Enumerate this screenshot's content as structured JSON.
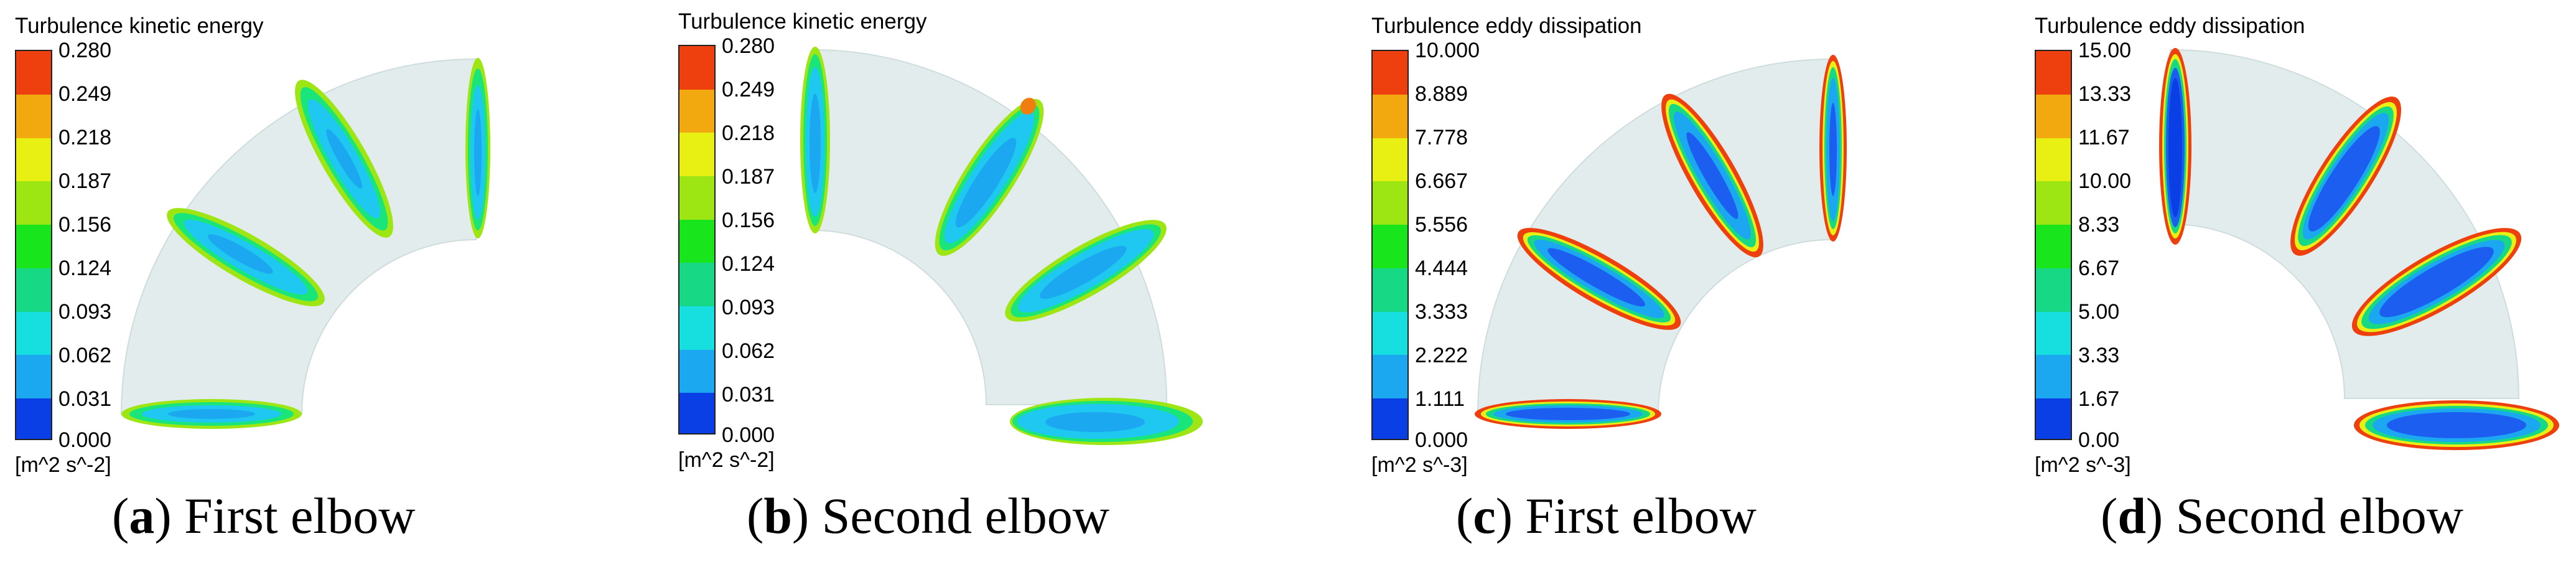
{
  "colors": {
    "pipe": "#e3ecec",
    "pipe_edge": "#c9d6d6",
    "legend": [
      "#0a3fe6",
      "#1c8cf0",
      "#17c8f5",
      "#17dfb0",
      "#17cf53",
      "#19e51c",
      "#9ee514",
      "#e7f012",
      "#f2bd10",
      "#f07e0e",
      "#ee3f0f"
    ]
  },
  "panels": [
    {
      "legend_title": "Turbulence kinetic energy",
      "legend_values": [
        "0.280",
        "0.249",
        "0.218",
        "0.187",
        "0.156",
        "0.124",
        "0.093",
        "0.062",
        "0.031",
        "0.000"
      ],
      "unit": "[m^2 s^-2]",
      "caption_letter": "a",
      "caption_text": "First elbow"
    },
    {
      "legend_title": "Turbulence kinetic energy",
      "legend_values": [
        "0.280",
        "0.249",
        "0.218",
        "0.187",
        "0.156",
        "0.124",
        "0.093",
        "0.062",
        "0.031",
        "0.000"
      ],
      "unit": "[m^2 s^-2]",
      "caption_letter": "b",
      "caption_text": "Second elbow"
    },
    {
      "legend_title": "Turbulence eddy dissipation",
      "legend_values": [
        "10.000",
        "8.889",
        "7.778",
        "6.667",
        "5.556",
        "4.444",
        "3.333",
        "2.222",
        "1.111",
        "0.000"
      ],
      "unit": "[m^2 s^-3]",
      "caption_letter": "c",
      "caption_text": "First elbow"
    },
    {
      "legend_title": "Turbulence eddy dissipation",
      "legend_values": [
        "15.00",
        "13.33",
        "11.67",
        "10.00",
        "8.33",
        "6.67",
        "5.00",
        "3.33",
        "1.67",
        "0.00"
      ],
      "unit": "[m^2 s^-3]",
      "caption_letter": "d",
      "caption_text": "Second elbow"
    }
  ],
  "punct": {
    "open": "(",
    "close": ")"
  }
}
